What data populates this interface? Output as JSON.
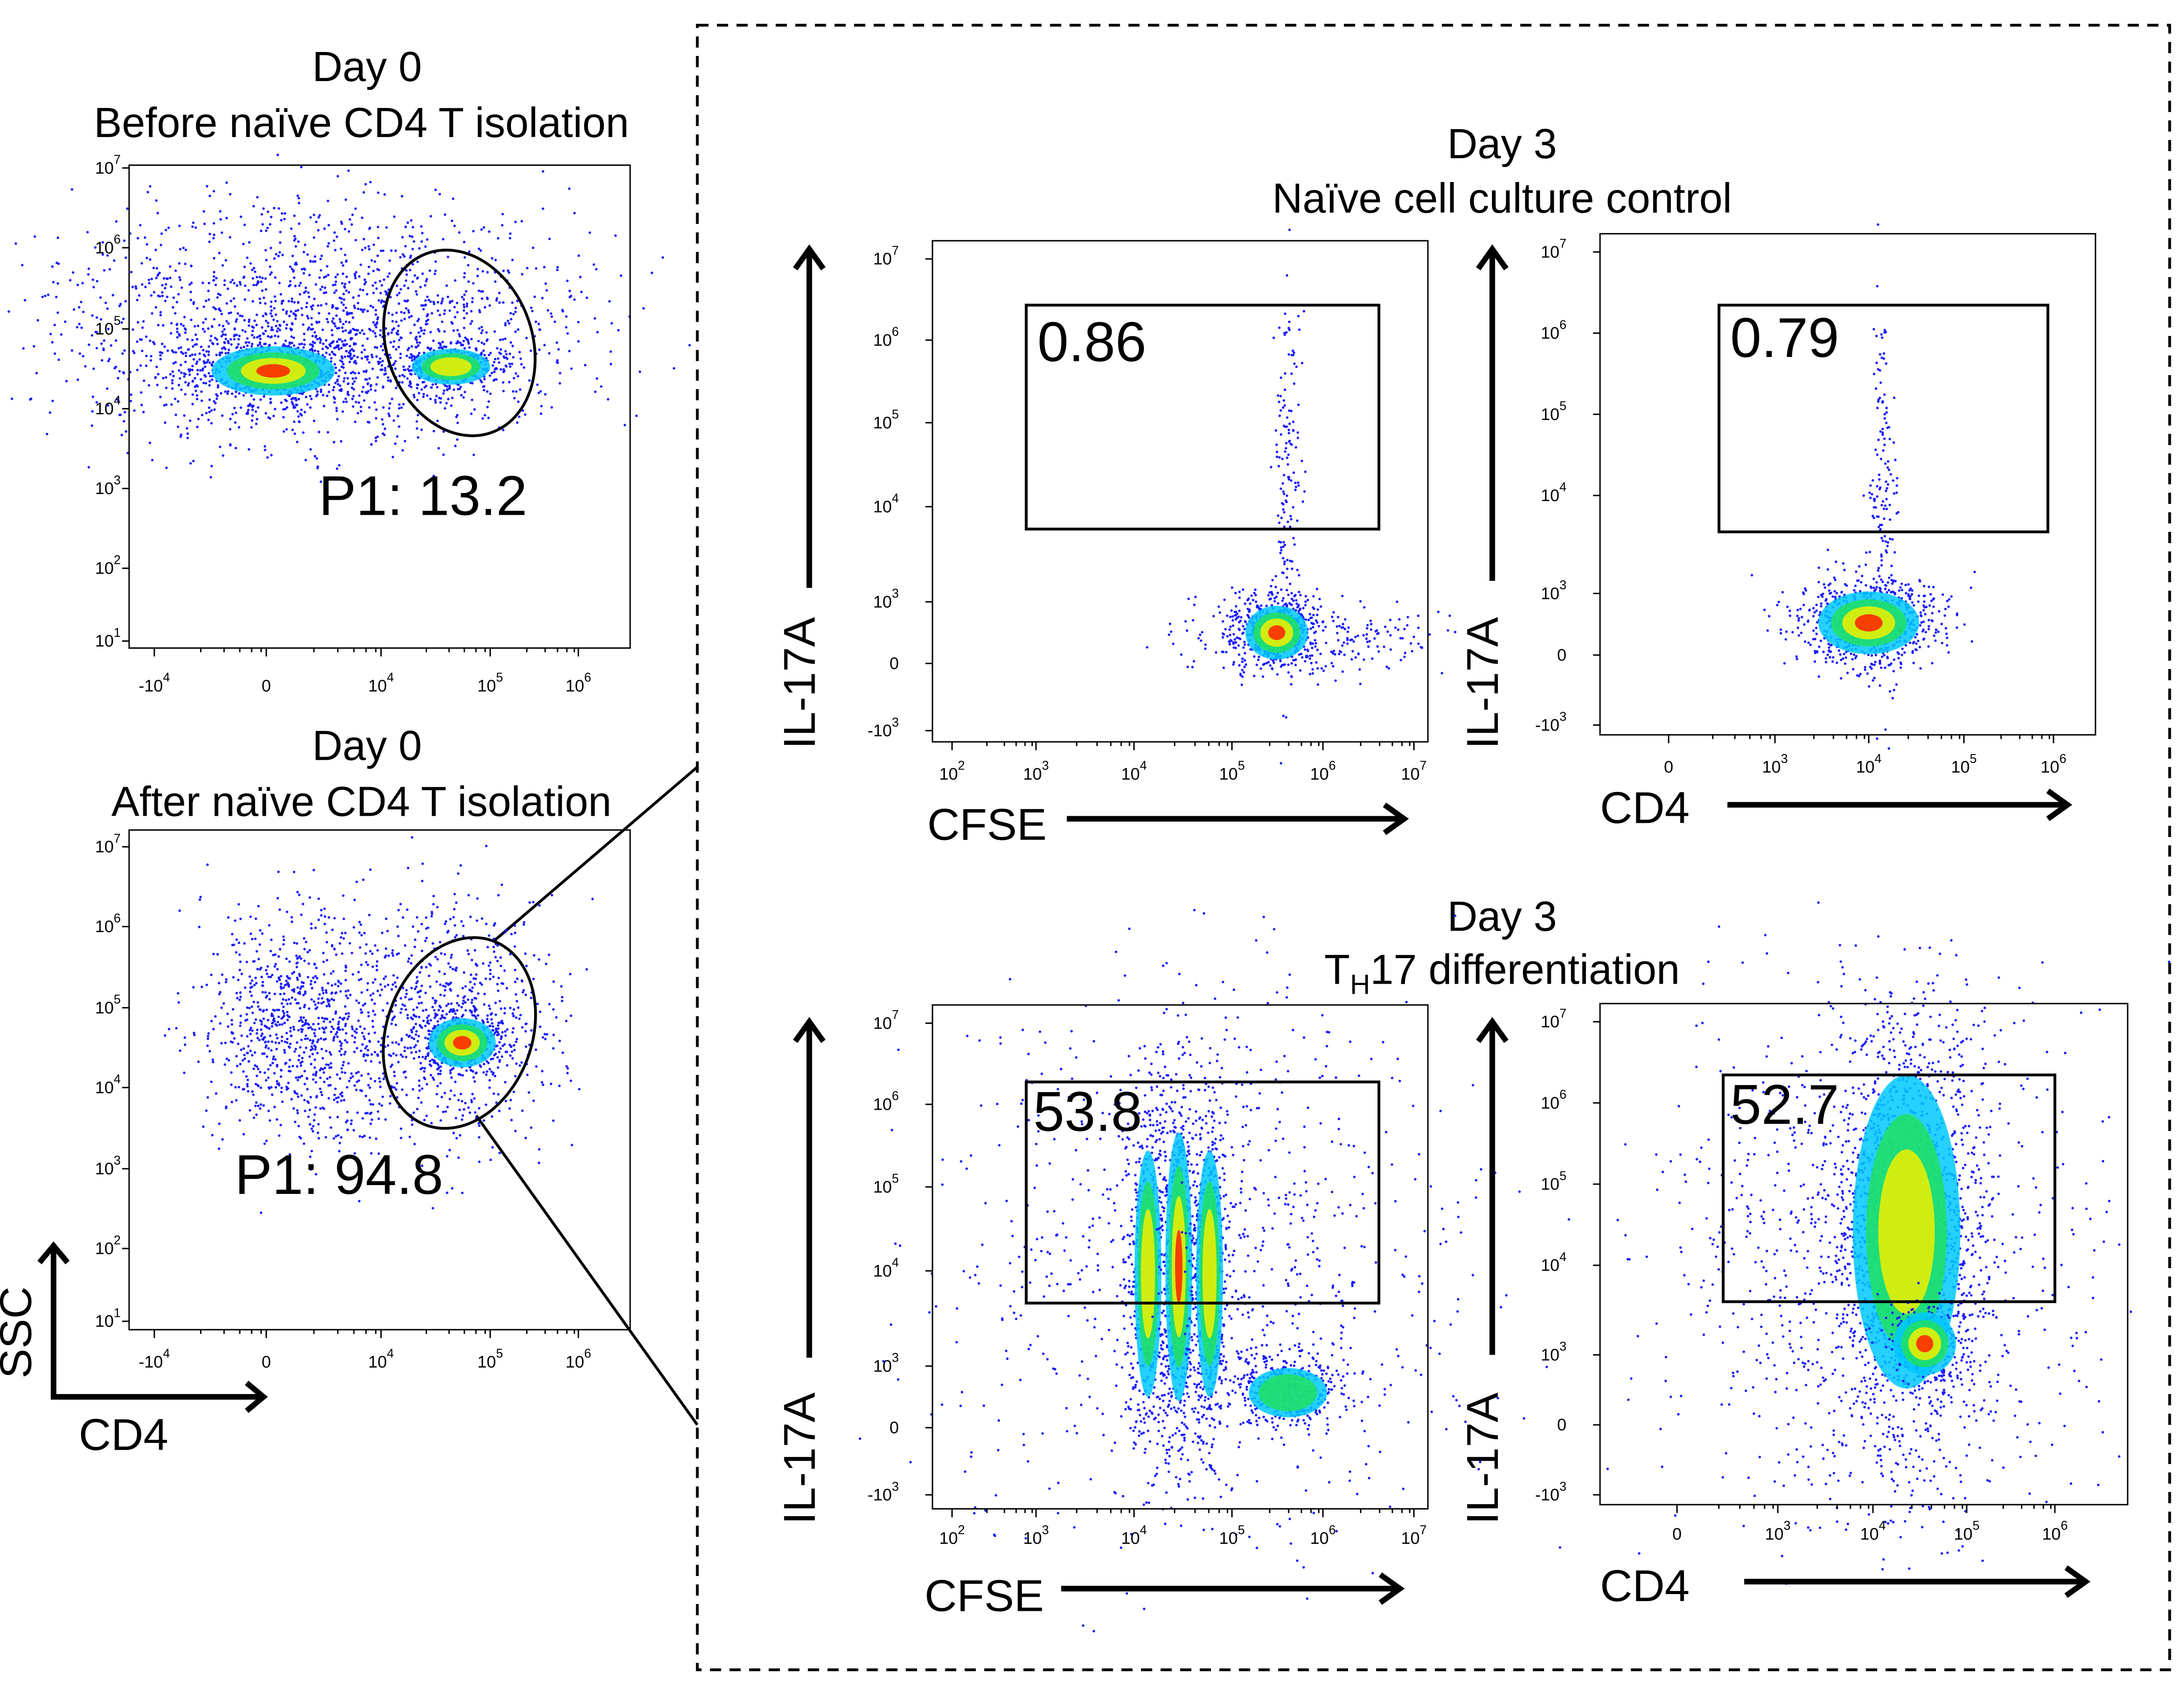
{
  "left_panels": [
    {
      "title": "Day 0",
      "subtitle": "Before naïve CD4 T isolation",
      "gate_label": "P1: 13.2",
      "yticks": [
        {
          "base": "10",
          "exp": "7"
        },
        {
          "base": "10",
          "exp": "6"
        },
        {
          "base": "10",
          "exp": "5"
        },
        {
          "base": "10",
          "exp": "4"
        },
        {
          "base": "10",
          "exp": "3"
        },
        {
          "base": "10",
          "exp": "2"
        },
        {
          "base": "10",
          "exp": "1"
        }
      ],
      "xticks": [
        {
          "base": "-10",
          "exp": "4"
        },
        {
          "base": "0"
        },
        {
          "base": "10",
          "exp": "4"
        },
        {
          "base": "10",
          "exp": "5"
        },
        {
          "base": "10",
          "exp": "6"
        }
      ]
    },
    {
      "title": "Day 0",
      "subtitle": "After naïve CD4 T isolation",
      "gate_label": "P1: 94.8",
      "yticks": [
        {
          "base": "10",
          "exp": "7"
        },
        {
          "base": "10",
          "exp": "6"
        },
        {
          "base": "10",
          "exp": "5"
        },
        {
          "base": "10",
          "exp": "4"
        },
        {
          "base": "10",
          "exp": "3"
        },
        {
          "base": "10",
          "exp": "2"
        },
        {
          "base": "10",
          "exp": "1"
        }
      ],
      "xticks": [
        {
          "base": "-10",
          "exp": "4"
        },
        {
          "base": "0"
        },
        {
          "base": "10",
          "exp": "4"
        },
        {
          "base": "10",
          "exp": "5"
        },
        {
          "base": "10",
          "exp": "6"
        }
      ]
    }
  ],
  "left_axis_labels": {
    "y": "SSC",
    "x": "CD4"
  },
  "groups": [
    {
      "title": "Day 3",
      "subtitle": [
        {
          "text": "Naïve cell culture control"
        }
      ],
      "plots": [
        {
          "y_label": "IL-17A",
          "x_label": "CFSE",
          "gate_label": "0.86",
          "yticks": [
            {
              "base": "10",
              "exp": "7"
            },
            {
              "base": "10",
              "exp": "6"
            },
            {
              "base": "10",
              "exp": "5"
            },
            {
              "base": "10",
              "exp": "4"
            },
            {
              "base": "10",
              "exp": "3"
            },
            {
              "base": "0"
            },
            {
              "base": "-10",
              "exp": "3"
            }
          ],
          "xticks": [
            {
              "base": "10",
              "exp": "2"
            },
            {
              "base": "10",
              "exp": "3"
            },
            {
              "base": "10",
              "exp": "4"
            },
            {
              "base": "10",
              "exp": "5"
            },
            {
              "base": "10",
              "exp": "6"
            },
            {
              "base": "10",
              "exp": "7"
            }
          ]
        },
        {
          "y_label": "IL-17A",
          "x_label": "CD4",
          "gate_label": "0.79",
          "yticks": [
            {
              "base": "10",
              "exp": "7"
            },
            {
              "base": "10",
              "exp": "6"
            },
            {
              "base": "10",
              "exp": "5"
            },
            {
              "base": "10",
              "exp": "4"
            },
            {
              "base": "10",
              "exp": "3"
            },
            {
              "base": "0"
            },
            {
              "base": "-10",
              "exp": "3"
            }
          ],
          "xticks": [
            {
              "base": "0"
            },
            {
              "base": "10",
              "exp": "3"
            },
            {
              "base": "10",
              "exp": "4"
            },
            {
              "base": "10",
              "exp": "5"
            },
            {
              "base": "10",
              "exp": "6"
            }
          ]
        }
      ]
    },
    {
      "title": "Day 3",
      "subtitle": [
        {
          "text": "T"
        },
        {
          "text": "H",
          "sub": true
        },
        {
          "text": "17 differentiation"
        }
      ],
      "plots": [
        {
          "y_label": "IL-17A",
          "x_label": "CFSE",
          "gate_label": "53.8",
          "yticks": [
            {
              "base": "10",
              "exp": "7"
            },
            {
              "base": "10",
              "exp": "6"
            },
            {
              "base": "10",
              "exp": "5"
            },
            {
              "base": "10",
              "exp": "4"
            },
            {
              "base": "10",
              "exp": "3"
            },
            {
              "base": "0"
            },
            {
              "base": "-10",
              "exp": "3"
            }
          ],
          "xticks": [
            {
              "base": "10",
              "exp": "2"
            },
            {
              "base": "10",
              "exp": "3"
            },
            {
              "base": "10",
              "exp": "4"
            },
            {
              "base": "10",
              "exp": "5"
            },
            {
              "base": "10",
              "exp": "6"
            },
            {
              "base": "10",
              "exp": "7"
            }
          ]
        },
        {
          "y_label": "IL-17A",
          "x_label": "CD4",
          "gate_label": "52.7",
          "yticks": [
            {
              "base": "10",
              "exp": "7"
            },
            {
              "base": "10",
              "exp": "6"
            },
            {
              "base": "10",
              "exp": "5"
            },
            {
              "base": "10",
              "exp": "4"
            },
            {
              "base": "10",
              "exp": "3"
            },
            {
              "base": "0"
            },
            {
              "base": "-10",
              "exp": "3"
            }
          ],
          "xticks": [
            {
              "base": "0"
            },
            {
              "base": "10",
              "exp": "3"
            },
            {
              "base": "10",
              "exp": "4"
            },
            {
              "base": "10",
              "exp": "5"
            },
            {
              "base": "10",
              "exp": "6"
            }
          ]
        }
      ]
    }
  ]
}
